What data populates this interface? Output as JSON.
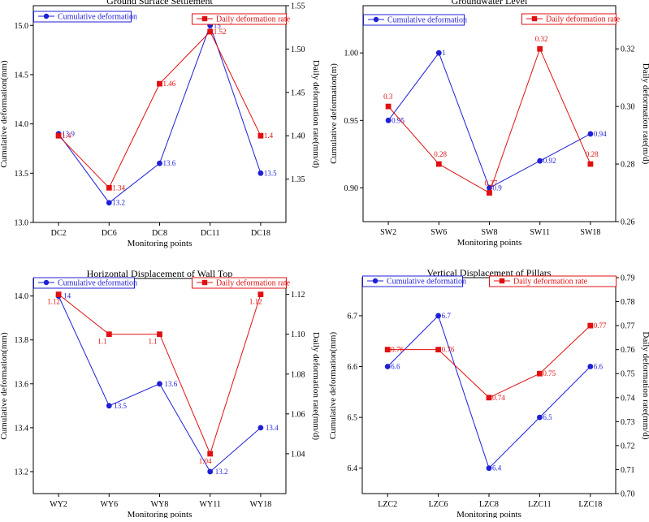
{
  "colors": {
    "cumulative": "#1f1fd6",
    "daily": "#e01010",
    "axis": "#000000"
  },
  "chart_data": [
    {
      "type": "line",
      "title": "Ground Surface Settlement",
      "xlabel": "Monitoring points",
      "ylabel": "Cumulative deformation(mm)",
      "y2label": "Daily deformation rate(mm/d)",
      "categories": [
        "DC2",
        "DC6",
        "DC8",
        "DC11",
        "DC18"
      ],
      "ylim": [
        13.0,
        15.2
      ],
      "yticks": [
        13.0,
        13.5,
        14.0,
        14.5,
        15.0
      ],
      "y2lim": [
        1.3,
        1.55
      ],
      "y2ticks": [
        1.35,
        1.4,
        1.45,
        1.5,
        1.55
      ],
      "legend_left": "Cumulative deformation",
      "legend_right": "Daily deformation rate",
      "series": [
        {
          "name": "Cumulative deformation",
          "axis": "left",
          "values": [
            13.9,
            13.2,
            13.6,
            15.0,
            13.5
          ],
          "labels": [
            "13.9",
            "13.2",
            "13.6",
            "15",
            "13.5"
          ]
        },
        {
          "name": "Daily deformation rate",
          "axis": "right",
          "values": [
            1.4,
            1.34,
            1.46,
            1.52,
            1.4
          ],
          "labels": [
            "1.4",
            "1.34",
            "1.46",
            "1.52",
            "1.4"
          ]
        }
      ]
    },
    {
      "type": "line",
      "title": "Groundwater Level",
      "xlabel": "Monitoring points",
      "ylabel": "Cumulative deformation(m)",
      "y2label": "Daily deformation rate(m/d)",
      "categories": [
        "SW2",
        "SW6",
        "SW8",
        "SW11",
        "SW18"
      ],
      "ylim": [
        0.875,
        1.035
      ],
      "yticks": [
        0.9,
        0.95,
        1.0
      ],
      "y2lim": [
        0.26,
        0.335
      ],
      "y2ticks": [
        0.26,
        0.28,
        0.3,
        0.32
      ],
      "legend_left": "Cumulative deformation",
      "legend_right": "Daily deformation rate",
      "series": [
        {
          "name": "Cumulative deformation",
          "axis": "left",
          "values": [
            0.95,
            1.0,
            0.9,
            0.92,
            0.94
          ],
          "labels": [
            "0.95",
            "1",
            "0.9",
            "0.92",
            "0.94"
          ]
        },
        {
          "name": "Daily deformation rate",
          "axis": "right",
          "values": [
            0.3,
            0.28,
            0.27,
            0.32,
            0.28
          ],
          "labels": [
            "0.3",
            "0.28",
            "0.27",
            "0.32",
            "0.28"
          ]
        }
      ]
    },
    {
      "type": "line",
      "title": "Horizontal Displacement of Wall Top",
      "xlabel": "Monitoring points",
      "ylabel": "Cumulative deformation(mm)",
      "y2label": "Daily deformation rate(mm/d)",
      "categories": [
        "WY2",
        "WY6",
        "WY8",
        "WY11",
        "WY18"
      ],
      "ylim": [
        13.1,
        14.08
      ],
      "yticks": [
        13.2,
        13.4,
        13.6,
        13.8,
        14.0
      ],
      "y2lim": [
        1.02,
        1.128
      ],
      "y2ticks": [
        1.04,
        1.06,
        1.08,
        1.1,
        1.12
      ],
      "legend_left": "Cumulative deformation",
      "legend_right": "Daily deformation rate",
      "series": [
        {
          "name": "Cumulative deformation",
          "axis": "left",
          "values": [
            14.0,
            13.5,
            13.6,
            13.2,
            13.4
          ],
          "labels": [
            "14",
            "13.5",
            "13.6",
            "13.2",
            "13.4"
          ]
        },
        {
          "name": "Daily deformation rate",
          "axis": "right",
          "values": [
            1.12,
            1.1,
            1.1,
            1.04,
            1.12
          ],
          "labels": [
            "1.12",
            "1.1",
            "1.1",
            "1.04",
            "1.12"
          ]
        }
      ]
    },
    {
      "type": "line",
      "title": "Vertical Displacement of Pillars",
      "xlabel": "Monitoring points",
      "ylabel": "Cumulative deformation(mm)",
      "y2label": "Daily deformation rate(mm/d)",
      "categories": [
        "LZC2",
        "LZC6",
        "LZC8",
        "LZC11",
        "LZC18"
      ],
      "ylim": [
        6.35,
        6.775
      ],
      "yticks": [
        6.4,
        6.5,
        6.6,
        6.7
      ],
      "y2lim": [
        0.7,
        0.79
      ],
      "y2ticks": [
        0.7,
        0.71,
        0.72,
        0.73,
        0.74,
        0.75,
        0.76,
        0.77,
        0.78,
        0.79
      ],
      "legend_left": "Cumulative deformation",
      "legend_right": "Daily deformation rate",
      "series": [
        {
          "name": "Cumulative deformation",
          "axis": "left",
          "values": [
            6.6,
            6.7,
            6.4,
            6.5,
            6.6
          ],
          "labels": [
            "6.6",
            "6.7",
            "6.4",
            "6.5",
            "6.6"
          ]
        },
        {
          "name": "Daily deformation rate",
          "axis": "right",
          "values": [
            0.76,
            0.76,
            0.74,
            0.75,
            0.77
          ],
          "labels": [
            "0.76",
            "0.76",
            "0.74",
            "0.75",
            "0.77"
          ]
        }
      ]
    }
  ]
}
